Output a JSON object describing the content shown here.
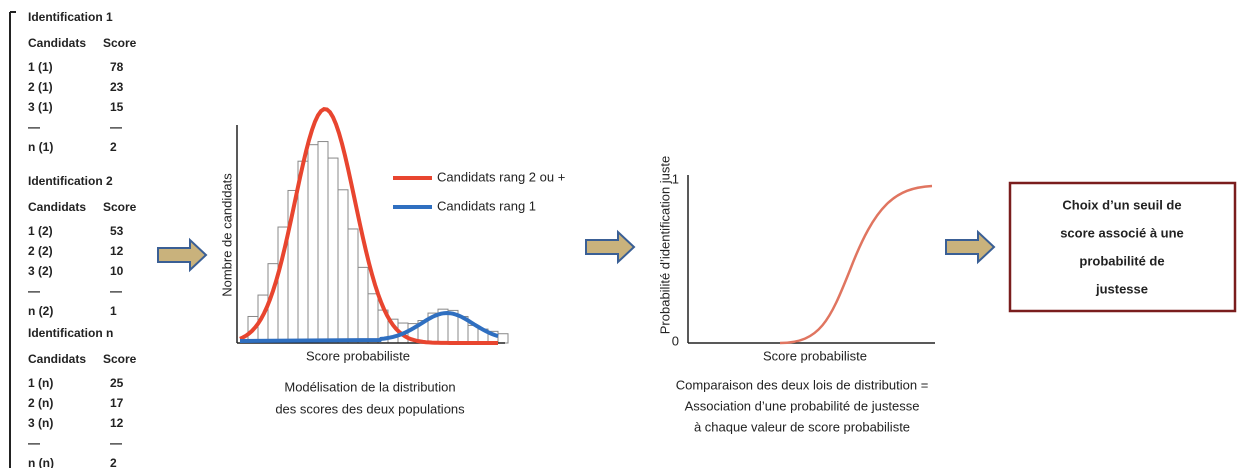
{
  "identifications": [
    {
      "title": "Identification 1",
      "headers": [
        "Candidats",
        "Score"
      ],
      "rows": [
        [
          "1 (1)",
          "78"
        ],
        [
          "2 (1)",
          "23"
        ],
        [
          "3 (1)",
          "15"
        ],
        [
          "—",
          "—"
        ],
        [
          "n (1)",
          "2"
        ]
      ]
    },
    {
      "title": "Identification 2",
      "headers": [
        "Candidats",
        "Score"
      ],
      "rows": [
        [
          "1 (2)",
          "53"
        ],
        [
          "2 (2)",
          "12"
        ],
        [
          "3 (2)",
          "10"
        ],
        [
          "—",
          "—"
        ],
        [
          "n (2)",
          "1"
        ]
      ]
    },
    {
      "title": "Identification n",
      "headers": [
        "Candidats",
        "Score"
      ],
      "rows": [
        [
          "1 (n)",
          "25"
        ],
        [
          "2 (n)",
          "17"
        ],
        [
          "3 (n)",
          "12"
        ],
        [
          "—",
          "—"
        ],
        [
          "n (n)",
          "2"
        ]
      ]
    }
  ],
  "histogram": {
    "y_label": "Nombre de candidats",
    "x_label": "Score probabiliste",
    "legend": [
      "Candidats rang 2 ou +",
      "Candidats rang 1"
    ],
    "caption": [
      "Modélisation de la distribution",
      "des scores des deux populations"
    ]
  },
  "probability": {
    "y_label": "Probabilité d’identification  juste",
    "ticks": [
      "1",
      "0"
    ],
    "x_label": "Score probabiliste",
    "caption": [
      "Comparaison des deux lois de distribution =",
      "Association d’une probabilité de justesse",
      "à chaque valeur de score probabiliste"
    ]
  },
  "result": {
    "lines": [
      "Choix d’un seuil de",
      "score associé à une",
      "probabilité de",
      "justesse"
    ]
  }
}
